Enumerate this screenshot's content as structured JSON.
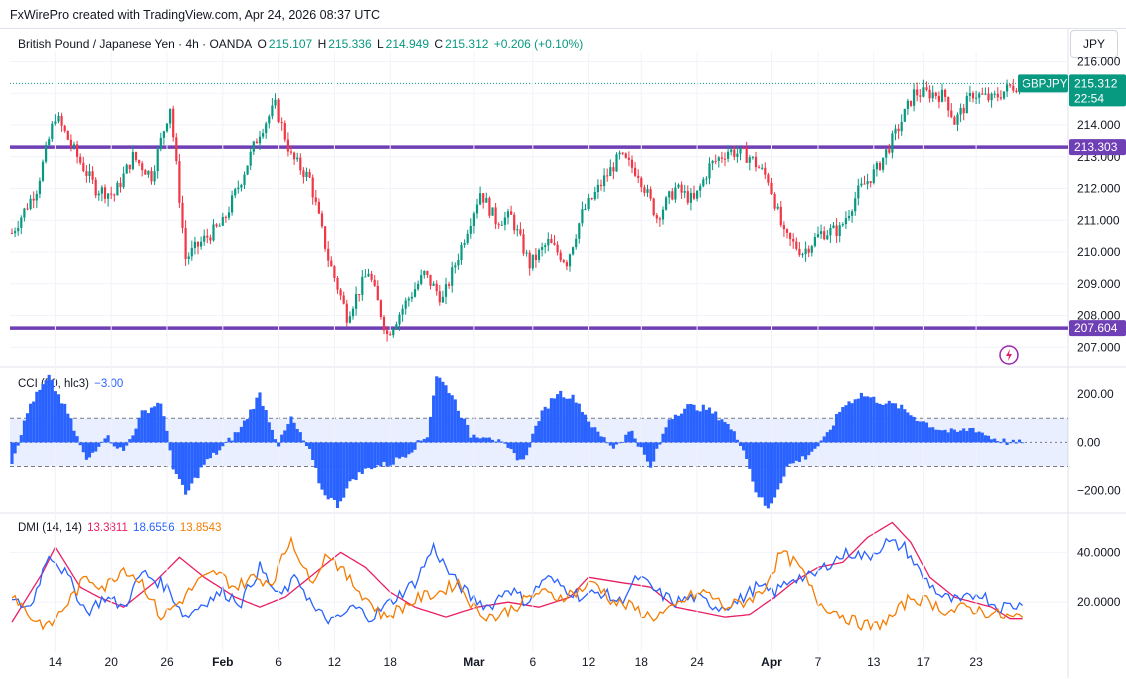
{
  "header": {
    "attribution": "FxWirePro created with TradingView.com, Apr 24, 2026 08:37 UTC"
  },
  "symbol": {
    "title": "British Pound / Japanese Yen · 4h · OANDA",
    "o_label": "O",
    "o": "215.107",
    "h_label": "H",
    "h": "215.336",
    "l_label": "L",
    "l": "214.949",
    "c_label": "C",
    "c": "215.312",
    "change": "+0.206 (+0.10%)",
    "currency": "JPY",
    "ticker": "GBPJPY",
    "last_price": "215.312",
    "countdown": "22:54"
  },
  "colors": {
    "up": "#089981",
    "down": "#f23645",
    "level": "#6f3fb5",
    "cci": "#2962ff",
    "plus_di": "#2962ff",
    "minus_di": "#f57c00",
    "adx": "#e91e63",
    "grid": "#f0f3fa"
  },
  "cci": {
    "label": "CCI (50, hlc3)",
    "value": "−3.00"
  },
  "dmi": {
    "label": "DMI (14, 14)",
    "adx_value": "13.3811",
    "plus_value": "18.6556",
    "minus_value": "13.8543"
  },
  "chart_data": [
    {
      "type": "candlestick",
      "title": "British Pound / Japanese Yen · 4h · OANDA",
      "ylim": [
        206.6,
        216.3
      ],
      "y_ticks": [
        "207.000",
        "208.000",
        "209.000",
        "210.000",
        "211.000",
        "212.000",
        "213.000",
        "214.000",
        "215.000",
        "216.000"
      ],
      "levels": [
        {
          "name": "resistance",
          "value": 213.303,
          "label": "213.303"
        },
        {
          "name": "support",
          "value": 207.604,
          "label": "207.604"
        }
      ],
      "last": 215.312,
      "path_points": [
        [
          0,
          210.6
        ],
        [
          8,
          212.0
        ],
        [
          14,
          214.3
        ],
        [
          21,
          213.0
        ],
        [
          27,
          212.0
        ],
        [
          33,
          211.8
        ],
        [
          39,
          213.0
        ],
        [
          45,
          212.4
        ],
        [
          51,
          214.6
        ],
        [
          56,
          209.8
        ],
        [
          62,
          210.4
        ],
        [
          68,
          210.9
        ],
        [
          74,
          212.3
        ],
        [
          80,
          213.8
        ],
        [
          85,
          214.6
        ],
        [
          90,
          213.0
        ],
        [
          96,
          212.3
        ],
        [
          102,
          209.8
        ],
        [
          108,
          208.0
        ],
        [
          115,
          209.4
        ],
        [
          121,
          207.4
        ],
        [
          127,
          208.4
        ],
        [
          133,
          209.3
        ],
        [
          139,
          208.5
        ],
        [
          144,
          209.9
        ],
        [
          151,
          211.9
        ],
        [
          156,
          211.0
        ],
        [
          161,
          211.1
        ],
        [
          167,
          209.6
        ],
        [
          173,
          210.3
        ],
        [
          179,
          209.7
        ],
        [
          184,
          211.2
        ],
        [
          191,
          212.3
        ],
        [
          196,
          213.0
        ],
        [
          202,
          212.5
        ],
        [
          208,
          211.1
        ],
        [
          214,
          212.0
        ],
        [
          220,
          211.6
        ],
        [
          225,
          212.7
        ],
        [
          231,
          213.2
        ],
        [
          238,
          213.0
        ],
        [
          244,
          212.3
        ],
        [
          249,
          210.5
        ],
        [
          255,
          210.0
        ],
        [
          261,
          210.6
        ],
        [
          267,
          210.7
        ],
        [
          273,
          211.9
        ],
        [
          279,
          212.6
        ],
        [
          285,
          213.7
        ],
        [
          291,
          215.0
        ],
        [
          297,
          215.0
        ],
        [
          301,
          214.9
        ],
        [
          304,
          214.1
        ],
        [
          310,
          215.0
        ],
        [
          316,
          214.8
        ],
        [
          322,
          215.2
        ],
        [
          326,
          215.31
        ]
      ],
      "x_ticks": [
        {
          "label": "14",
          "i": 14
        },
        {
          "label": "20",
          "i": 32
        },
        {
          "label": "26",
          "i": 50
        },
        {
          "label": "Feb",
          "i": 68
        },
        {
          "label": "6",
          "i": 86
        },
        {
          "label": "12",
          "i": 104
        },
        {
          "label": "18",
          "i": 122
        },
        {
          "label": "Mar",
          "i": 149
        },
        {
          "label": "6",
          "i": 168
        },
        {
          "label": "12",
          "i": 186
        },
        {
          "label": "18",
          "i": 203
        },
        {
          "label": "24",
          "i": 221
        },
        {
          "label": "Apr",
          "i": 245
        },
        {
          "label": "7",
          "i": 260
        },
        {
          "label": "13",
          "i": 278
        },
        {
          "label": "17",
          "i": 294
        },
        {
          "label": "23",
          "i": 311
        }
      ]
    },
    {
      "type": "bar",
      "title": "CCI (50, hlc3)",
      "ylim": [
        -280,
        300
      ],
      "y_ticks": [
        "200.00",
        "0.00",
        "−200.00"
      ],
      "bands": [
        100,
        -100
      ],
      "path_points": [
        [
          0,
          -80
        ],
        [
          6,
          160
        ],
        [
          12,
          270
        ],
        [
          18,
          120
        ],
        [
          24,
          -80
        ],
        [
          30,
          30
        ],
        [
          36,
          -40
        ],
        [
          42,
          120
        ],
        [
          48,
          170
        ],
        [
          52,
          -100
        ],
        [
          56,
          -220
        ],
        [
          62,
          -90
        ],
        [
          68,
          -20
        ],
        [
          74,
          60
        ],
        [
          80,
          200
        ],
        [
          86,
          -10
        ],
        [
          90,
          100
        ],
        [
          96,
          -40
        ],
        [
          100,
          -200
        ],
        [
          105,
          -260
        ],
        [
          110,
          -150
        ],
        [
          116,
          -100
        ],
        [
          122,
          -90
        ],
        [
          128,
          -40
        ],
        [
          134,
          30
        ],
        [
          137,
          280
        ],
        [
          142,
          200
        ],
        [
          148,
          30
        ],
        [
          154,
          30
        ],
        [
          160,
          -30
        ],
        [
          165,
          -80
        ],
        [
          170,
          100
        ],
        [
          176,
          210
        ],
        [
          182,
          180
        ],
        [
          188,
          50
        ],
        [
          194,
          -20
        ],
        [
          200,
          50
        ],
        [
          206,
          -110
        ],
        [
          212,
          100
        ],
        [
          218,
          150
        ],
        [
          224,
          140
        ],
        [
          230,
          90
        ],
        [
          236,
          -20
        ],
        [
          240,
          -200
        ],
        [
          244,
          -280
        ],
        [
          250,
          -100
        ],
        [
          256,
          -60
        ],
        [
          262,
          10
        ],
        [
          268,
          150
        ],
        [
          274,
          200
        ],
        [
          280,
          170
        ],
        [
          286,
          150
        ],
        [
          292,
          100
        ],
        [
          298,
          60
        ],
        [
          304,
          40
        ],
        [
          310,
          60
        ],
        [
          316,
          20
        ],
        [
          322,
          -3
        ]
      ]
    },
    {
      "type": "line",
      "title": "DMI (14, 14)",
      "ylim": [
        0,
        55
      ],
      "y_ticks": [
        "40.0000",
        "20.0000"
      ],
      "series": [
        {
          "name": "adx",
          "points": [
            [
              0,
              12
            ],
            [
              10,
              32
            ],
            [
              14,
              42
            ],
            [
              22,
              26
            ],
            [
              28,
              22
            ],
            [
              36,
              18
            ],
            [
              46,
              28
            ],
            [
              54,
              38
            ],
            [
              62,
              30
            ],
            [
              72,
              22
            ],
            [
              80,
              18
            ],
            [
              88,
              22
            ],
            [
              100,
              34
            ],
            [
              106,
              40
            ],
            [
              114,
              34
            ],
            [
              122,
              24
            ],
            [
              130,
              18
            ],
            [
              140,
              14
            ],
            [
              150,
              18
            ],
            [
              160,
              20
            ],
            [
              170,
              18
            ],
            [
              180,
              22
            ],
            [
              186,
              30
            ],
            [
              196,
              28
            ],
            [
              206,
              26
            ],
            [
              214,
              18
            ],
            [
              222,
              16
            ],
            [
              230,
              14
            ],
            [
              238,
              15
            ],
            [
              246,
              22
            ],
            [
              252,
              28
            ],
            [
              260,
              34
            ],
            [
              268,
              36
            ],
            [
              276,
              46
            ],
            [
              284,
              52
            ],
            [
              290,
              44
            ],
            [
              296,
              30
            ],
            [
              304,
              22
            ],
            [
              316,
              18
            ],
            [
              322,
              13.38
            ]
          ]
        },
        {
          "name": "plus_di",
          "points": [
            [
              0,
              20
            ],
            [
              6,
              18
            ],
            [
              12,
              40
            ],
            [
              18,
              30
            ],
            [
              24,
              16
            ],
            [
              30,
              22
            ],
            [
              36,
              18
            ],
            [
              42,
              32
            ],
            [
              50,
              26
            ],
            [
              56,
              14
            ],
            [
              62,
              20
            ],
            [
              68,
              24
            ],
            [
              74,
              20
            ],
            [
              80,
              34
            ],
            [
              86,
              22
            ],
            [
              92,
              30
            ],
            [
              98,
              16
            ],
            [
              104,
              12
            ],
            [
              110,
              18
            ],
            [
              116,
              14
            ],
            [
              122,
              20
            ],
            [
              130,
              28
            ],
            [
              136,
              42
            ],
            [
              142,
              30
            ],
            [
              148,
              22
            ],
            [
              154,
              18
            ],
            [
              160,
              26
            ],
            [
              166,
              20
            ],
            [
              172,
              30
            ],
            [
              178,
              26
            ],
            [
              184,
              22
            ],
            [
              190,
              24
            ],
            [
              196,
              20
            ],
            [
              202,
              30
            ],
            [
              208,
              24
            ],
            [
              214,
              20
            ],
            [
              220,
              22
            ],
            [
              228,
              18
            ],
            [
              234,
              20
            ],
            [
              240,
              26
            ],
            [
              246,
              24
            ],
            [
              252,
              30
            ],
            [
              258,
              30
            ],
            [
              264,
              36
            ],
            [
              270,
              40
            ],
            [
              276,
              38
            ],
            [
              282,
              44
            ],
            [
              288,
              42
            ],
            [
              294,
              30
            ],
            [
              300,
              22
            ],
            [
              306,
              20
            ],
            [
              312,
              24
            ],
            [
              318,
              18
            ],
            [
              322,
              18.66
            ]
          ]
        },
        {
          "name": "minus_di",
          "points": [
            [
              0,
              24
            ],
            [
              6,
              14
            ],
            [
              12,
              10
            ],
            [
              18,
              20
            ],
            [
              24,
              30
            ],
            [
              30,
              26
            ],
            [
              36,
              34
            ],
            [
              42,
              28
            ],
            [
              48,
              14
            ],
            [
              54,
              20
            ],
            [
              60,
              28
            ],
            [
              66,
              32
            ],
            [
              72,
              26
            ],
            [
              78,
              30
            ],
            [
              84,
              28
            ],
            [
              90,
              46
            ],
            [
              96,
              28
            ],
            [
              102,
              40
            ],
            [
              108,
              30
            ],
            [
              114,
              22
            ],
            [
              120,
              14
            ],
            [
              126,
              18
            ],
            [
              132,
              22
            ],
            [
              138,
              24
            ],
            [
              144,
              28
            ],
            [
              150,
              16
            ],
            [
              156,
              14
            ],
            [
              162,
              18
            ],
            [
              170,
              24
            ],
            [
              176,
              22
            ],
            [
              182,
              24
            ],
            [
              188,
              28
            ],
            [
              194,
              20
            ],
            [
              200,
              18
            ],
            [
              206,
              14
            ],
            [
              212,
              16
            ],
            [
              218,
              22
            ],
            [
              224,
              24
            ],
            [
              230,
              18
            ],
            [
              236,
              20
            ],
            [
              242,
              24
            ],
            [
              248,
              40
            ],
            [
              254,
              34
            ],
            [
              260,
              20
            ],
            [
              266,
              16
            ],
            [
              272,
              12
            ],
            [
              278,
              10
            ],
            [
              284,
              14
            ],
            [
              290,
              22
            ],
            [
              296,
              20
            ],
            [
              302,
              16
            ],
            [
              308,
              18
            ],
            [
              314,
              16
            ],
            [
              322,
              13.85
            ]
          ]
        }
      ]
    }
  ]
}
